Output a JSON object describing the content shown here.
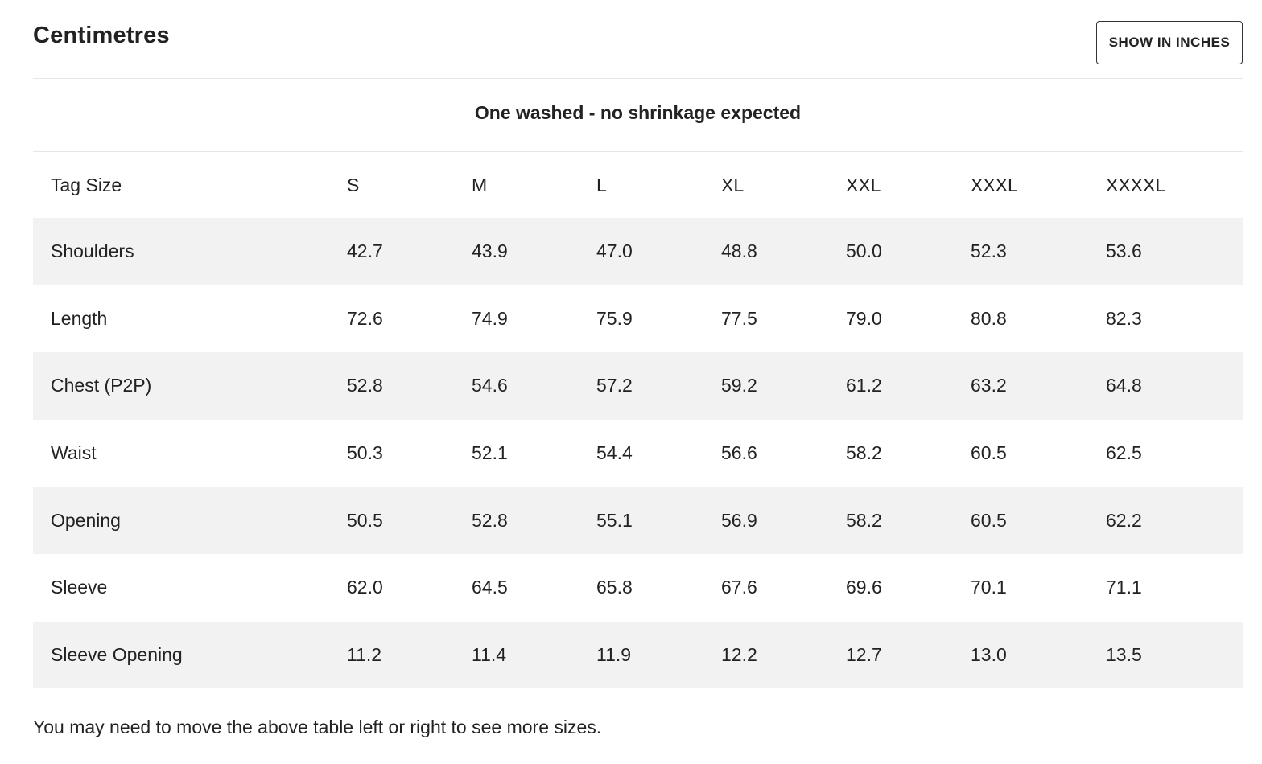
{
  "header": {
    "title": "Centimetres",
    "unit_toggle_label": "SHOW IN INCHES"
  },
  "table": {
    "caption": "One washed - no shrinkage expected",
    "header_label": "Tag Size",
    "sizes": [
      "S",
      "M",
      "L",
      "XL",
      "XXL",
      "XXXL",
      "XXXXL"
    ],
    "rows": [
      {
        "label": "Shoulders",
        "values": [
          "42.7",
          "43.9",
          "47.0",
          "48.8",
          "50.0",
          "52.3",
          "53.6"
        ]
      },
      {
        "label": "Length",
        "values": [
          "72.6",
          "74.9",
          "75.9",
          "77.5",
          "79.0",
          "80.8",
          "82.3"
        ]
      },
      {
        "label": "Chest (P2P)",
        "values": [
          "52.8",
          "54.6",
          "57.2",
          "59.2",
          "61.2",
          "63.2",
          "64.8"
        ]
      },
      {
        "label": "Waist",
        "values": [
          "50.3",
          "52.1",
          "54.4",
          "56.6",
          "58.2",
          "60.5",
          "62.5"
        ]
      },
      {
        "label": "Opening",
        "values": [
          "50.5",
          "52.8",
          "55.1",
          "56.9",
          "58.2",
          "60.5",
          "62.2"
        ]
      },
      {
        "label": "Sleeve",
        "values": [
          "62.0",
          "64.5",
          "65.8",
          "67.6",
          "69.6",
          "70.1",
          "71.1"
        ]
      },
      {
        "label": "Sleeve Opening",
        "values": [
          "11.2",
          "11.4",
          "11.9",
          "12.2",
          "12.7",
          "13.0",
          "13.5"
        ]
      }
    ]
  },
  "footer": {
    "note": "You may need to move the above table left or right to see more sizes."
  },
  "colors": {
    "text": "#222222",
    "row_shade": "#f2f2f2",
    "divider": "#e6e6e6",
    "button_border": "#333333"
  }
}
